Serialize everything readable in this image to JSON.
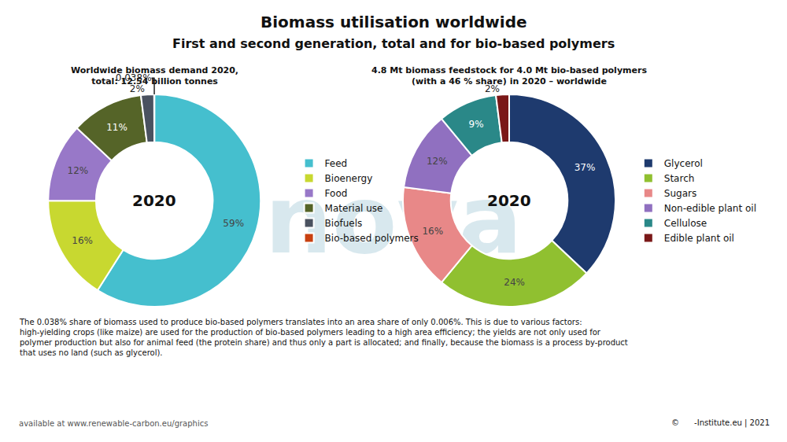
{
  "title": "Biomass utilisation worldwide",
  "subtitle": "First and second generation, total and for bio-based polymers",
  "watermark": {
    "text": "nova",
    "color": "#d8e8ee"
  },
  "footnote": [
    "The 0.038% share of biomass used to produce bio-based polymers translates into an area share of only 0.006%. This is due to various factors:",
    "high-yielding crops (like maize) are used for the production of bio-based polymers leading to a high area efficiency; the yields are not only used for",
    "polymer production but also for animal feed (the protein share) and thus only a part is allocated; and finally, because the biomass is a process by-product",
    "that uses no land (such as glycerol)."
  ],
  "source": "available at www.renewable-carbon.eu/graphics",
  "copyright": "©      -Institute.eu | 2021",
  "chart_data": [
    {
      "type": "pie",
      "title": "Worldwide biomass demand 2020,\ntotal: 12.54 billion tonnes",
      "categories": [
        "Feed",
        "Bioenergy",
        "Food",
        "Material use",
        "Biofuels",
        "Bio-based polymers"
      ],
      "values": [
        59,
        16,
        12,
        11,
        2,
        0.038
      ],
      "value_labels": [
        "59%",
        "16%",
        "12%",
        "11%",
        "2%",
        "0,038%"
      ],
      "colors": [
        "#45bfce",
        "#c8d830",
        "#9878c8",
        "#556428",
        "#4a5260",
        "#c84010"
      ],
      "annotations": [
        "2020"
      ],
      "legend": "right"
    },
    {
      "type": "pie",
      "title": "4.8 Mt biomass feedstock for 4.0 Mt bio-based polymers\n(with a 46 % share) in 2020 – worldwide",
      "categories": [
        "Glycerol",
        "Starch",
        "Sugars",
        "Non-edible plant oil",
        "Cellulose",
        "Edible plant oil"
      ],
      "values": [
        37,
        24,
        16,
        12,
        9,
        2
      ],
      "value_labels": [
        "37%",
        "24%",
        "16%",
        "12%",
        "9%",
        "2%"
      ],
      "colors": [
        "#1e3a6e",
        "#90c030",
        "#e88888",
        "#9070c0",
        "#2a8888",
        "#7a1818"
      ],
      "annotations": [
        "2020"
      ],
      "legend": "right"
    }
  ]
}
